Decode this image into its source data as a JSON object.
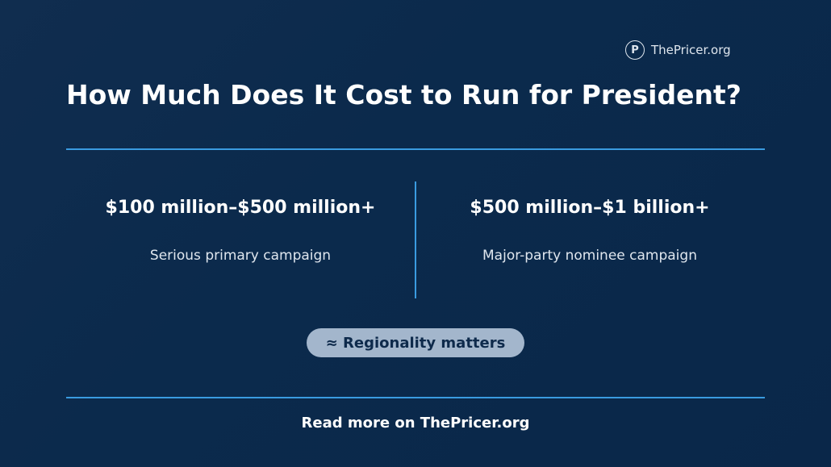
{
  "brand": {
    "icon": "P",
    "name": "ThePricer.org"
  },
  "title": "How Much Does It Cost to Run for President?",
  "columns": [
    {
      "amount": "$100 million–$500 million+",
      "label": "Serious primary campaign"
    },
    {
      "amount": "$500 million–$1 billion+",
      "label": "Major-party nominee campaign"
    }
  ],
  "badge": "≈ Regionality matters",
  "footer": "Read more on ThePricer.org"
}
